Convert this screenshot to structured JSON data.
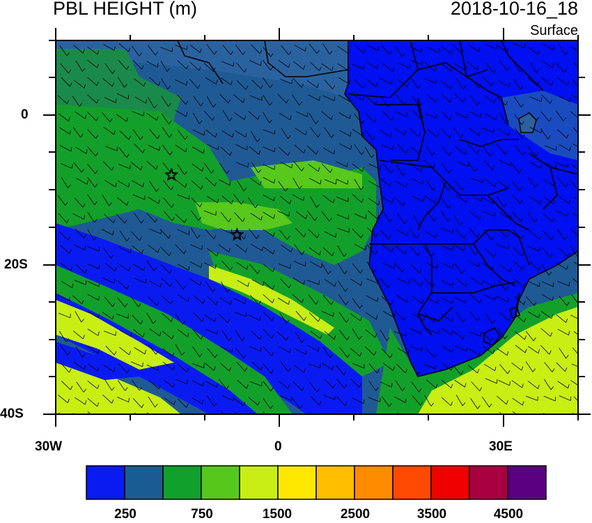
{
  "header": {
    "title": "PBL HEIGHT (m)",
    "datetime": "2018-10-16_18",
    "level": "Surface"
  },
  "map": {
    "region": "South Atlantic and southern Africa",
    "lon_range": [
      -30,
      40
    ],
    "lat_range": [
      -40,
      10
    ],
    "lon_tick_labels": [
      "30W",
      "0",
      "30E"
    ],
    "lat_tick_labels": [
      "0",
      "20S",
      "40S"
    ],
    "colors": {
      "ocean_low": "#0a1bf2",
      "land": "#0010f0",
      "borders": "#000000"
    },
    "markers": [
      {
        "name": "star-marker-1",
        "lon": -14.5,
        "lat": -8.0
      },
      {
        "name": "star-marker-2",
        "lon": -5.7,
        "lat": -16.0
      }
    ],
    "overlay": "wind barbs"
  },
  "colorbar": {
    "labels": [
      "250",
      "750",
      "1500",
      "2500",
      "3500",
      "4500"
    ],
    "colors": [
      "#0a1bf2",
      "#195c94",
      "#10a02c",
      "#56c81c",
      "#c8ee14",
      "#ffe800",
      "#ffbe00",
      "#ff8c00",
      "#ff4a00",
      "#f00000",
      "#a80040",
      "#5a0080"
    ]
  }
}
